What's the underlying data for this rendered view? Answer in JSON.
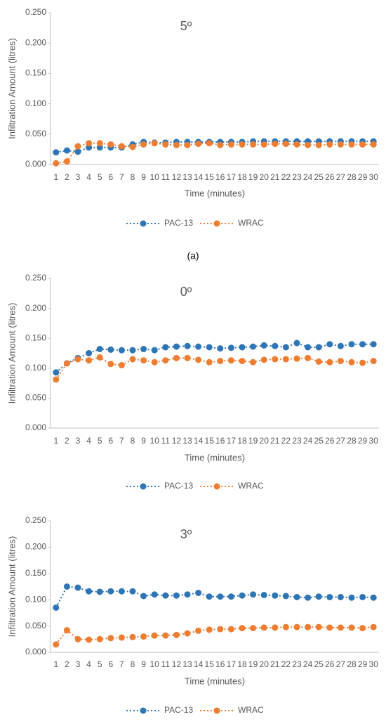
{
  "chart_data": [
    {
      "type": "line",
      "title": "5º",
      "x_label": "Time (minutes)",
      "y_label": "Infiltration Amount (litres)",
      "categories": [
        "1",
        "2",
        "3",
        "4",
        "5",
        "6",
        "7",
        "8",
        "9",
        "10",
        "11",
        "12",
        "13",
        "14",
        "15",
        "16",
        "17",
        "18",
        "19",
        "20",
        "21",
        "22",
        "23",
        "24",
        "25",
        "26",
        "27",
        "28",
        "29",
        "30"
      ],
      "ylim": [
        0,
        0.25
      ],
      "yticks": [
        {
          "value": 0,
          "label": "0.000"
        },
        {
          "value": 0.05,
          "label": "0.050"
        },
        {
          "value": 0.1,
          "label": "0.100"
        },
        {
          "value": 0.15,
          "label": "0.150"
        },
        {
          "value": 0.2,
          "label": "0.200"
        },
        {
          "value": 0.25,
          "label": "0.250"
        }
      ],
      "series": [
        {
          "name": "PAC-13",
          "color": "#2e75b6",
          "values": [
            0.02,
            0.023,
            0.021,
            0.028,
            0.028,
            0.028,
            0.028,
            0.033,
            0.037,
            0.036,
            0.036,
            0.037,
            0.037,
            0.037,
            0.037,
            0.037,
            0.037,
            0.037,
            0.038,
            0.038,
            0.038,
            0.038,
            0.038,
            0.038,
            0.038,
            0.038,
            0.038,
            0.038,
            0.038,
            0.038
          ]
        },
        {
          "name": "WRAC",
          "color": "#ed7d31",
          "values": [
            0.002,
            0.005,
            0.03,
            0.035,
            0.035,
            0.033,
            0.03,
            0.029,
            0.033,
            0.035,
            0.033,
            0.032,
            0.032,
            0.034,
            0.035,
            0.032,
            0.033,
            0.033,
            0.033,
            0.033,
            0.034,
            0.034,
            0.033,
            0.032,
            0.032,
            0.033,
            0.033,
            0.033,
            0.033,
            0.033
          ]
        }
      ]
    },
    {
      "type": "line",
      "title": "0º",
      "x_label": "Time (minutes)",
      "y_label": "Infiltration Amount (litres)",
      "categories": [
        "1",
        "2",
        "3",
        "4",
        "5",
        "6",
        "7",
        "8",
        "9",
        "10",
        "11",
        "12",
        "13",
        "14",
        "15",
        "16",
        "17",
        "18",
        "19",
        "20",
        "21",
        "22",
        "23",
        "24",
        "25",
        "26",
        "27",
        "28",
        "29",
        "30"
      ],
      "ylim": [
        0,
        0.25
      ],
      "yticks": [
        {
          "value": 0,
          "label": "0.000"
        },
        {
          "value": 0.05,
          "label": "0.050"
        },
        {
          "value": 0.1,
          "label": "0.100"
        },
        {
          "value": 0.15,
          "label": "0.150"
        },
        {
          "value": 0.2,
          "label": "0.200"
        },
        {
          "value": 0.25,
          "label": "0.250"
        }
      ],
      "series": [
        {
          "name": "PAC-13",
          "color": "#2e75b6",
          "values": [
            0.093,
            0.108,
            0.117,
            0.125,
            0.132,
            0.131,
            0.13,
            0.13,
            0.132,
            0.13,
            0.135,
            0.136,
            0.137,
            0.136,
            0.135,
            0.133,
            0.134,
            0.135,
            0.136,
            0.138,
            0.137,
            0.135,
            0.142,
            0.135,
            0.135,
            0.14,
            0.137,
            0.14,
            0.14,
            0.14
          ]
        },
        {
          "name": "WRAC",
          "color": "#ed7d31",
          "values": [
            0.081,
            0.108,
            0.115,
            0.113,
            0.118,
            0.107,
            0.105,
            0.115,
            0.113,
            0.11,
            0.113,
            0.117,
            0.117,
            0.114,
            0.11,
            0.112,
            0.113,
            0.112,
            0.11,
            0.114,
            0.115,
            0.115,
            0.116,
            0.117,
            0.111,
            0.11,
            0.112,
            0.11,
            0.109,
            0.112
          ]
        }
      ]
    },
    {
      "type": "line",
      "title": "3º",
      "x_label": "Time (minutes)",
      "y_label": "Infiltration Amount (litres)",
      "categories": [
        "1",
        "2",
        "3",
        "4",
        "5",
        "6",
        "7",
        "8",
        "9",
        "10",
        "11",
        "12",
        "13",
        "14",
        "15",
        "16",
        "17",
        "18",
        "19",
        "20",
        "21",
        "22",
        "23",
        "24",
        "25",
        "26",
        "27",
        "28",
        "29",
        "30"
      ],
      "ylim": [
        0,
        0.25
      ],
      "yticks": [
        {
          "value": 0,
          "label": "0.000"
        },
        {
          "value": 0.05,
          "label": "0.050"
        },
        {
          "value": 0.1,
          "label": "0.100"
        },
        {
          "value": 0.15,
          "label": "0.150"
        },
        {
          "value": 0.2,
          "label": "0.200"
        },
        {
          "value": 0.25,
          "label": "0.250"
        }
      ],
      "series": [
        {
          "name": "PAC-13",
          "color": "#2e75b6",
          "values": [
            0.085,
            0.125,
            0.123,
            0.116,
            0.115,
            0.116,
            0.116,
            0.116,
            0.107,
            0.11,
            0.108,
            0.108,
            0.11,
            0.113,
            0.106,
            0.106,
            0.106,
            0.108,
            0.11,
            0.109,
            0.108,
            0.107,
            0.105,
            0.104,
            0.106,
            0.105,
            0.105,
            0.104,
            0.105,
            0.104
          ]
        },
        {
          "name": "WRAC",
          "color": "#ed7d31",
          "values": [
            0.015,
            0.042,
            0.025,
            0.024,
            0.025,
            0.027,
            0.028,
            0.029,
            0.03,
            0.032,
            0.032,
            0.033,
            0.036,
            0.041,
            0.043,
            0.044,
            0.044,
            0.046,
            0.046,
            0.047,
            0.047,
            0.048,
            0.048,
            0.048,
            0.048,
            0.047,
            0.047,
            0.047,
            0.046,
            0.048
          ]
        }
      ]
    }
  ],
  "caption": "(a)"
}
